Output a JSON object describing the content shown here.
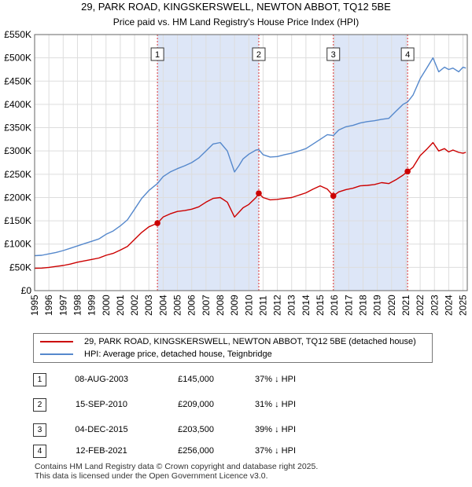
{
  "chart_data": {
    "type": "line",
    "title": "29, PARK ROAD, KINGSKERSWELL, NEWTON ABBOT, TQ12 5BE",
    "subtitle": "Price paid vs. HM Land Registry's House Price Index (HPI)",
    "xlabel": "",
    "ylabel": "",
    "xlim": [
      1995,
      2025.3
    ],
    "ylim": [
      0,
      550000
    ],
    "y_ticks": [
      0,
      50000,
      100000,
      150000,
      200000,
      250000,
      300000,
      350000,
      400000,
      450000,
      500000,
      550000
    ],
    "y_tick_labels": [
      "£0",
      "£50K",
      "£100K",
      "£150K",
      "£200K",
      "£250K",
      "£300K",
      "£350K",
      "£400K",
      "£450K",
      "£500K",
      "£550K"
    ],
    "x_tick_labels": [
      "1995",
      "1996",
      "1997",
      "1998",
      "1999",
      "2000",
      "2001",
      "2002",
      "2003",
      "2004",
      "2005",
      "2006",
      "2007",
      "2008",
      "2009",
      "2010",
      "2011",
      "2012",
      "2013",
      "2014",
      "2015",
      "2016",
      "2017",
      "2018",
      "2019",
      "2020",
      "2021",
      "2022",
      "2023",
      "2024",
      "2025"
    ],
    "grid": true,
    "series": [
      {
        "name": "29, PARK ROAD, KINGSKERSWELL, NEWTON ABBOT, TQ12 5BE (detached house)",
        "color": "#cc0000",
        "x": [
          1995.0,
          1995.5,
          1996.0,
          1996.5,
          1997.0,
          1997.5,
          1998.0,
          1998.5,
          1999.0,
          1999.5,
          2000.0,
          2000.5,
          2001.0,
          2001.5,
          2002.0,
          2002.5,
          2003.0,
          2003.6,
          2004.0,
          2004.5,
          2005.0,
          2005.5,
          2006.0,
          2006.5,
          2007.0,
          2007.5,
          2008.0,
          2008.5,
          2009.0,
          2009.3,
          2009.6,
          2010.0,
          2010.5,
          2010.7,
          2011.0,
          2011.5,
          2012.0,
          2012.5,
          2013.0,
          2013.5,
          2014.0,
          2014.5,
          2015.0,
          2015.5,
          2015.92,
          2016.3,
          2016.8,
          2017.3,
          2017.8,
          2018.3,
          2018.8,
          2019.3,
          2019.8,
          2020.3,
          2020.8,
          2021.12,
          2021.5,
          2022.0,
          2022.5,
          2022.9,
          2023.3,
          2023.7,
          2024.0,
          2024.3,
          2024.7,
          2025.0,
          2025.2
        ],
        "y": [
          48000,
          48500,
          50000,
          52000,
          54000,
          57000,
          61000,
          64000,
          67000,
          70000,
          76000,
          80000,
          87000,
          95000,
          110000,
          125000,
          137000,
          145000,
          158000,
          165000,
          170000,
          172000,
          175000,
          180000,
          190000,
          198000,
          200000,
          190000,
          158000,
          168000,
          178000,
          185000,
          200000,
          209000,
          200000,
          195000,
          196000,
          198000,
          200000,
          205000,
          210000,
          218000,
          225000,
          218000,
          203500,
          212000,
          217000,
          220000,
          225000,
          226000,
          228000,
          232000,
          230000,
          238000,
          248000,
          256000,
          265000,
          290000,
          305000,
          318000,
          300000,
          305000,
          298000,
          302000,
          297000,
          295000,
          297000
        ]
      },
      {
        "name": "HPI: Average price, detached house, Teignbridge",
        "color": "#5588cc",
        "x": [
          1995.0,
          1995.5,
          1996.0,
          1996.5,
          1997.0,
          1997.5,
          1998.0,
          1998.5,
          1999.0,
          1999.5,
          2000.0,
          2000.5,
          2001.0,
          2001.5,
          2002.0,
          2002.5,
          2003.0,
          2003.6,
          2004.0,
          2004.5,
          2005.0,
          2005.5,
          2006.0,
          2006.5,
          2007.0,
          2007.5,
          2008.0,
          2008.5,
          2009.0,
          2009.3,
          2009.6,
          2010.0,
          2010.5,
          2010.7,
          2011.0,
          2011.5,
          2012.0,
          2012.5,
          2013.0,
          2013.5,
          2014.0,
          2014.5,
          2015.0,
          2015.5,
          2015.92,
          2016.3,
          2016.8,
          2017.3,
          2017.8,
          2018.3,
          2018.8,
          2019.3,
          2019.8,
          2020.3,
          2020.8,
          2021.12,
          2021.5,
          2022.0,
          2022.5,
          2022.9,
          2023.3,
          2023.7,
          2024.0,
          2024.3,
          2024.7,
          2025.0,
          2025.2
        ],
        "y": [
          75000,
          76000,
          79000,
          82000,
          86000,
          91000,
          96000,
          101000,
          106000,
          111000,
          121000,
          128000,
          139000,
          152000,
          175000,
          198000,
          215000,
          230000,
          245000,
          255000,
          262000,
          268000,
          275000,
          285000,
          300000,
          315000,
          318000,
          300000,
          255000,
          268000,
          283000,
          293000,
          302000,
          303000,
          292000,
          287000,
          288000,
          292000,
          295000,
          300000,
          305000,
          315000,
          325000,
          335000,
          333000,
          345000,
          352000,
          355000,
          360000,
          363000,
          365000,
          368000,
          370000,
          385000,
          400000,
          405000,
          420000,
          455000,
          480000,
          500000,
          470000,
          480000,
          475000,
          478000,
          470000,
          480000,
          478000
        ]
      }
    ],
    "transactions": [
      {
        "label": "1",
        "date": "08-AUG-2003",
        "x": 2003.6,
        "price_value": 145000,
        "price": "£145,000",
        "hpi_diff": "37% ↓ HPI"
      },
      {
        "label": "2",
        "date": "15-SEP-2010",
        "x": 2010.7,
        "price_value": 209000,
        "price": "£209,000",
        "hpi_diff": "31% ↓ HPI"
      },
      {
        "label": "3",
        "date": "04-DEC-2015",
        "x": 2015.92,
        "price_value": 203500,
        "price": "£203,500",
        "hpi_diff": "39% ↓ HPI"
      },
      {
        "label": "4",
        "date": "12-FEB-2021",
        "x": 2021.12,
        "price_value": 256000,
        "price": "£256,000",
        "hpi_diff": "37% ↓ HPI"
      }
    ],
    "colors": {
      "band": "#dde6f7",
      "grid": "#dddddd",
      "vline": "#dd3333"
    }
  },
  "footer": {
    "line1": "Contains HM Land Registry data © Crown copyright and database right 2025.",
    "line2": "This data is licensed under the Open Government Licence v3.0."
  }
}
